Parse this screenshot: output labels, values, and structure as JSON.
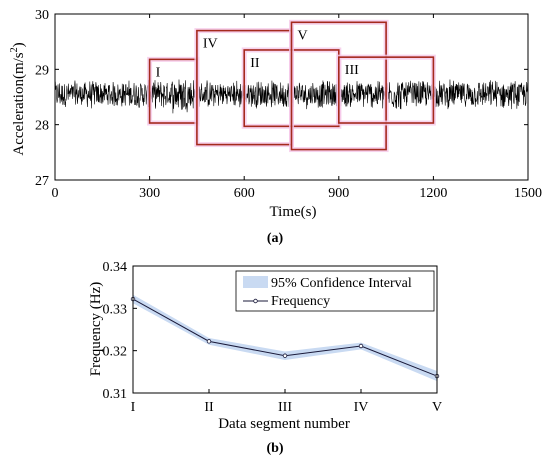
{
  "chart_data": [
    {
      "type": "line",
      "panel_label": "(a)",
      "xlabel": "Time(s)",
      "ylabel": "Acceleration(m/s²)",
      "ylabel_base": "Acceleration(m/s",
      "ylabel_sup": "2",
      "ylabel_close": ")",
      "xlim": [
        0,
        1500
      ],
      "ylim": [
        27,
        30
      ],
      "xticks": [
        0,
        300,
        600,
        900,
        1200,
        1500
      ],
      "xtick_labels": [
        "0",
        "300",
        "600",
        "900",
        "1200",
        "1500"
      ],
      "yticks": [
        27,
        28,
        29,
        30
      ],
      "ytick_labels": [
        "27",
        "28",
        "29",
        "30"
      ],
      "grid": false,
      "signal": {
        "mean": 28.55,
        "typical_range": [
          28.3,
          28.85
        ],
        "color": "#000000"
      },
      "segments": [
        {
          "label": "I",
          "x_start": 300,
          "x_end": 450,
          "y_low": 28.03,
          "y_high": 29.18
        },
        {
          "label": "IV",
          "x_start": 450,
          "x_end": 750,
          "y_low": 27.64,
          "y_high": 29.7
        },
        {
          "label": "II",
          "x_start": 600,
          "x_end": 900,
          "y_low": 27.97,
          "y_high": 29.35
        },
        {
          "label": "V",
          "x_start": 750,
          "x_end": 1050,
          "y_low": 27.55,
          "y_high": 29.85
        },
        {
          "label": "III",
          "x_start": 900,
          "x_end": 1200,
          "y_low": 28.03,
          "y_high": 29.22
        }
      ],
      "box_color": "#a52a1e",
      "box_glow": "#f5c8e8"
    },
    {
      "type": "line",
      "panel_label": "(b)",
      "xlabel": "Data segment number",
      "ylabel": "Frequency (Hz)",
      "categories": [
        "I",
        "II",
        "III",
        "IV",
        "V"
      ],
      "ylim": [
        0.31,
        0.34
      ],
      "yticks": [
        0.31,
        0.32,
        0.33,
        0.34
      ],
      "ytick_labels": [
        "0.31",
        "0.32",
        "0.33",
        "0.34"
      ],
      "grid": false,
      "legend_position": "top-right",
      "series": [
        {
          "name": "Frequency",
          "values": [
            0.3322,
            0.3222,
            0.3188,
            0.3211,
            0.314
          ],
          "color": "#1a1a3a"
        }
      ],
      "confidence_interval": {
        "name": "95% Confidence Interval",
        "lower": [
          0.3312,
          0.3214,
          0.3178,
          0.3203,
          0.3128
        ],
        "upper": [
          0.3332,
          0.323,
          0.3198,
          0.3219,
          0.3152
        ],
        "color": "#c9daf2"
      }
    }
  ]
}
